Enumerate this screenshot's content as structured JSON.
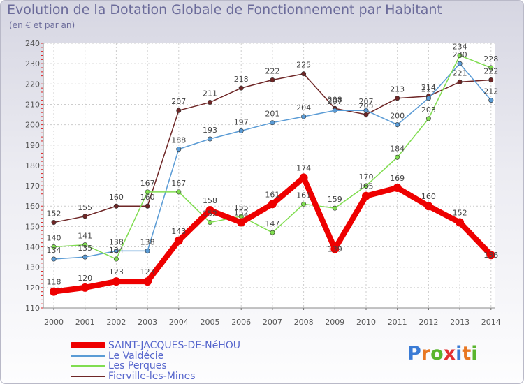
{
  "colors": {
    "SAINT-JACQUES-DE-NéHOU": "#ee0000",
    "Le Valdécie": "#5a9bd5",
    "Les Perques": "#80dd50",
    "Fierville-les-Mines": "#6e2626"
  },
  "logo": {
    "letters": [
      "P",
      "r",
      "o",
      "x",
      "i",
      "t",
      "i"
    ],
    "letter_colors": [
      "#3a7bd5",
      "#e87722",
      "#5ab52e",
      "#e23030",
      "#3a7bd5",
      "#e87722",
      "#5ab52e"
    ]
  },
  "chart_data": {
    "type": "line",
    "title": "Evolution de la Dotation Globale de Fonctionnement par Habitant",
    "subtitle": "(en € et par an)",
    "xlabel": "",
    "ylabel": "",
    "ylim": [
      110,
      240
    ],
    "y_ticks": [
      110,
      120,
      130,
      140,
      150,
      160,
      170,
      180,
      190,
      200,
      210,
      220,
      230,
      240
    ],
    "grid": true,
    "legend_position": "bottom-left",
    "categories": [
      "2000",
      "2001",
      "2002",
      "2003",
      "2004",
      "2005",
      "2006",
      "2007",
      "2008",
      "2009",
      "2010",
      "2011",
      "2012",
      "2013",
      "2014"
    ],
    "series": [
      {
        "name": "Fierville-les-Mines",
        "values": [
          152,
          155,
          160,
          160,
          207,
          211,
          218,
          222,
          225,
          208,
          205,
          213,
          214,
          221,
          222
        ],
        "label_offsets": [
          -13,
          -13,
          -13,
          -13,
          -13,
          -13,
          -13,
          -13,
          -13,
          -13,
          -13,
          -13,
          -13,
          -13,
          -13
        ]
      },
      {
        "name": "Le Valdécie",
        "values": [
          134,
          135,
          138,
          138,
          188,
          193,
          197,
          201,
          204,
          207,
          207,
          200,
          213,
          230,
          212
        ],
        "label_offsets": [
          -13,
          -13,
          -13,
          -13,
          -13,
          -13,
          -13,
          -13,
          -13,
          -13,
          -13,
          -13,
          -13,
          -13,
          -13
        ]
      },
      {
        "name": "Les Perques",
        "values": [
          140,
          141,
          134,
          167,
          167,
          152,
          155,
          147,
          161,
          159,
          170,
          184,
          203,
          234,
          228
        ],
        "label_offsets": [
          -13,
          -13,
          -13,
          -13,
          -13,
          -13,
          -13,
          -13,
          -13,
          -13,
          -13,
          -13,
          -13,
          -13,
          -13
        ]
      },
      {
        "name": "SAINT-JACQUES-DE-NéHOU",
        "values": [
          118,
          120,
          123,
          123,
          143,
          158,
          152,
          161,
          174,
          139,
          165,
          169,
          160,
          152,
          136
        ],
        "label_offsets": [
          -14,
          -14,
          -14,
          -14,
          -14,
          -14,
          -14,
          -14,
          -14,
          0,
          -14,
          -14,
          -14,
          -14,
          0
        ]
      }
    ]
  }
}
